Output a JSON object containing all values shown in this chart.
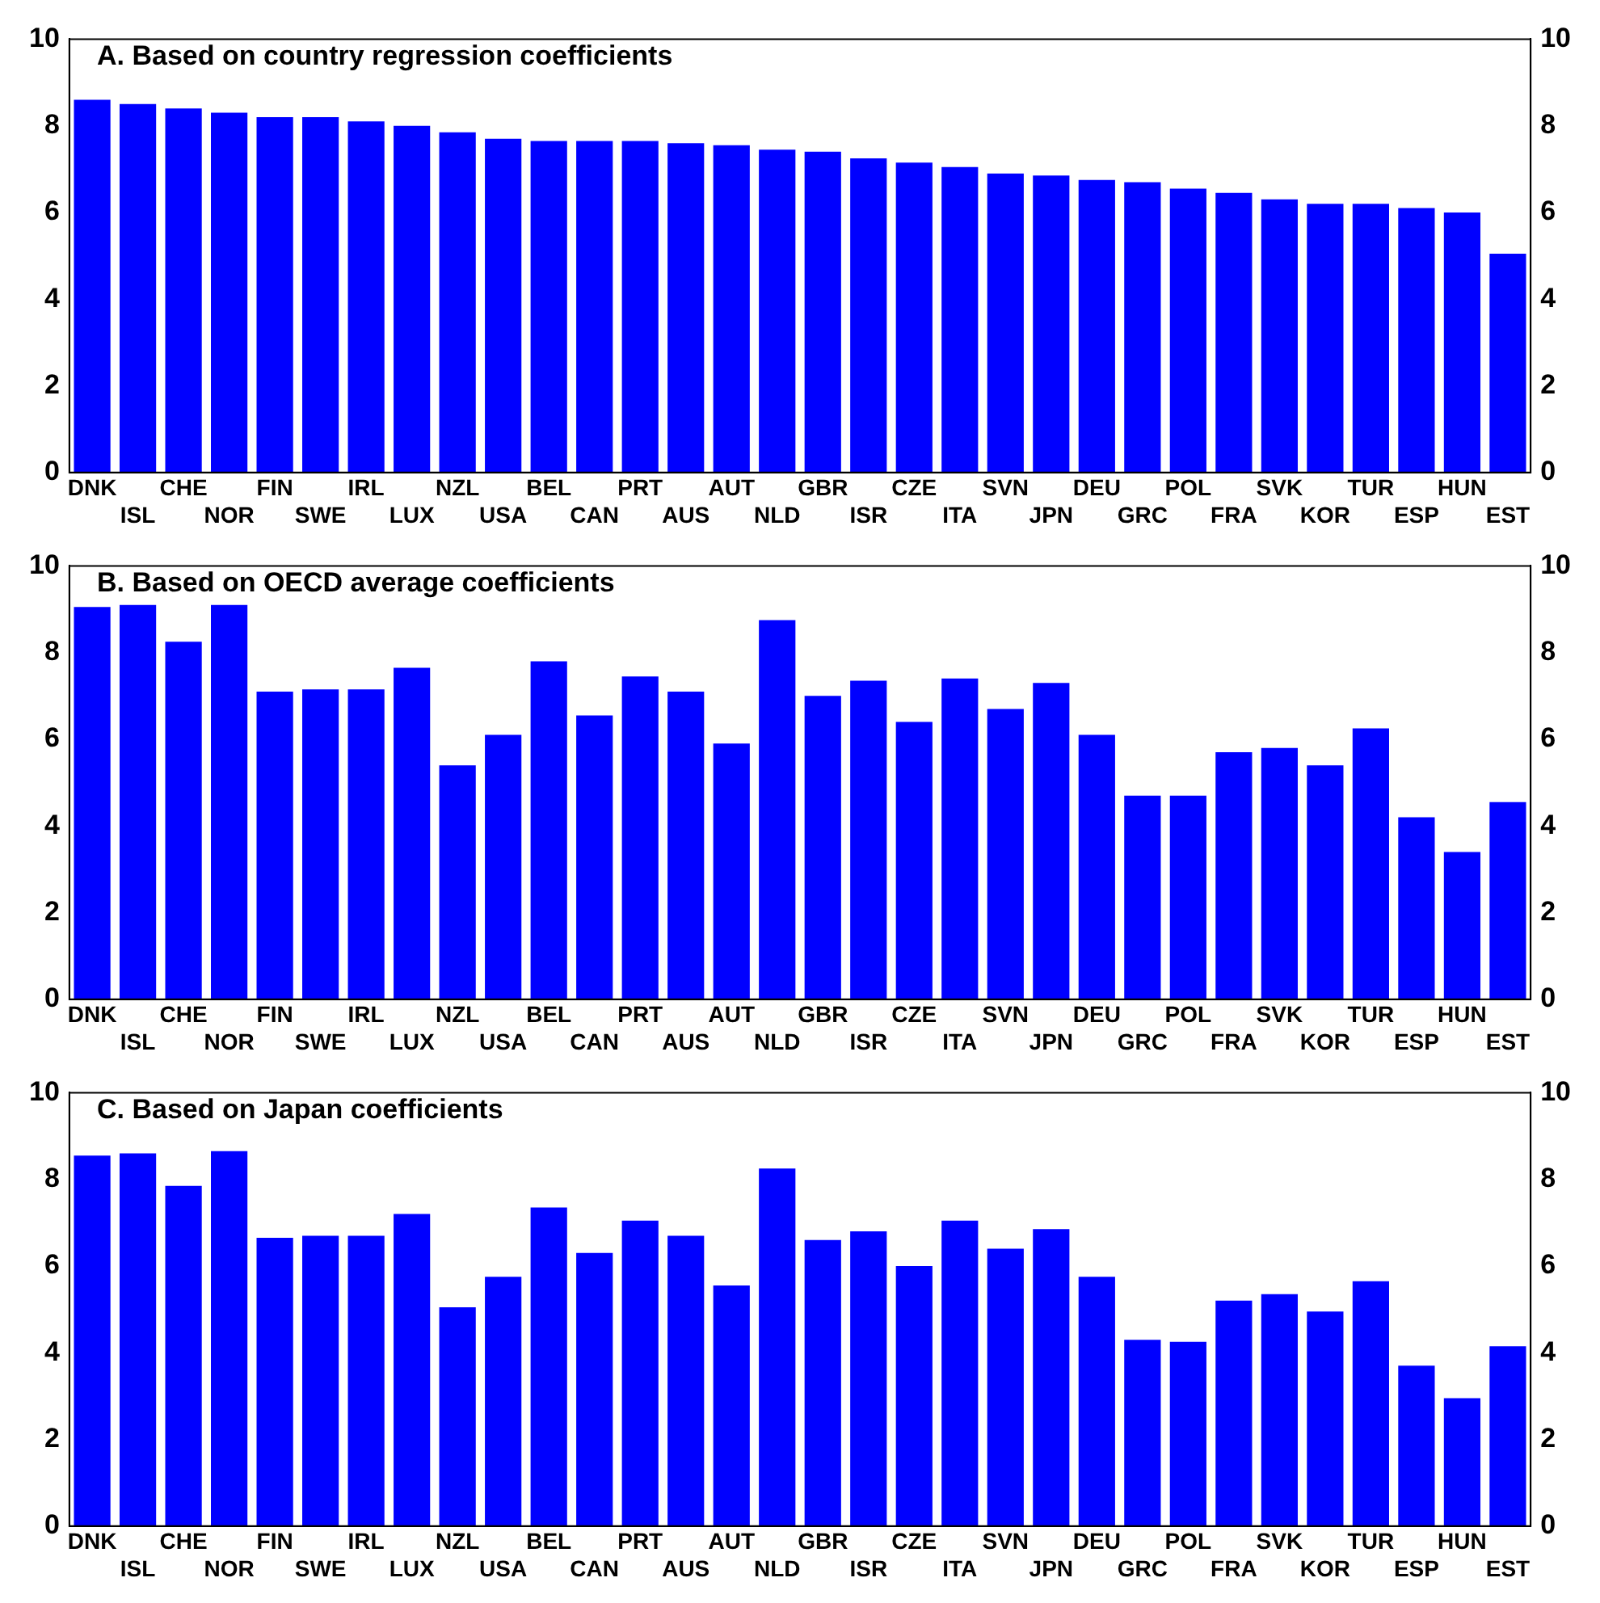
{
  "chart_data": [
    {
      "type": "bar",
      "title": "A. Based on country regression coefficients",
      "categories": [
        "DNK",
        "ISL",
        "CHE",
        "NOR",
        "FIN",
        "SWE",
        "IRL",
        "LUX",
        "NZL",
        "USA",
        "BEL",
        "CAN",
        "PRT",
        "AUS",
        "AUT",
        "NLD",
        "GBR",
        "ISR",
        "CZE",
        "ITA",
        "SVN",
        "JPN",
        "DEU",
        "GRC",
        "POL",
        "FRA",
        "SVK",
        "KOR",
        "TUR",
        "ESP",
        "HUN",
        "EST"
      ],
      "values": [
        8.6,
        8.5,
        8.4,
        8.3,
        8.2,
        8.2,
        8.1,
        8.0,
        7.85,
        7.7,
        7.65,
        7.65,
        7.65,
        7.6,
        7.55,
        7.45,
        7.4,
        7.25,
        7.15,
        7.05,
        6.9,
        6.85,
        6.75,
        6.7,
        6.55,
        6.45,
        6.3,
        6.2,
        6.2,
        6.1,
        6.0,
        5.05
      ],
      "color": "#0000ff",
      "ylim": [
        0,
        10
      ],
      "yticks": [
        0,
        2,
        4,
        6,
        8,
        10
      ],
      "y2lim": [
        0,
        10
      ],
      "y2ticks": [
        0,
        2,
        4,
        6,
        8,
        10
      ],
      "grid": false,
      "legend": false
    },
    {
      "type": "bar",
      "title": "B. Based on OECD average coefficients",
      "categories": [
        "DNK",
        "ISL",
        "CHE",
        "NOR",
        "FIN",
        "SWE",
        "IRL",
        "LUX",
        "NZL",
        "USA",
        "BEL",
        "CAN",
        "PRT",
        "AUS",
        "AUT",
        "NLD",
        "GBR",
        "ISR",
        "CZE",
        "ITA",
        "SVN",
        "JPN",
        "DEU",
        "GRC",
        "POL",
        "FRA",
        "SVK",
        "KOR",
        "TUR",
        "ESP",
        "HUN",
        "EST"
      ],
      "values": [
        9.05,
        9.1,
        8.25,
        9.1,
        7.1,
        7.15,
        7.15,
        7.65,
        5.4,
        6.1,
        7.8,
        6.55,
        7.45,
        7.1,
        5.9,
        8.75,
        7.0,
        7.35,
        6.4,
        7.4,
        6.7,
        7.3,
        6.1,
        4.7,
        4.7,
        5.7,
        5.8,
        5.4,
        6.25,
        4.2,
        3.4,
        4.55
      ],
      "color": "#0000ff",
      "ylim": [
        0,
        10
      ],
      "yticks": [
        0,
        2,
        4,
        6,
        8,
        10
      ],
      "y2lim": [
        0,
        10
      ],
      "y2ticks": [
        0,
        2,
        4,
        6,
        8,
        10
      ],
      "grid": false,
      "legend": false
    },
    {
      "type": "bar",
      "title": "C. Based on Japan coefficients",
      "categories": [
        "DNK",
        "ISL",
        "CHE",
        "NOR",
        "FIN",
        "SWE",
        "IRL",
        "LUX",
        "NZL",
        "USA",
        "BEL",
        "CAN",
        "PRT",
        "AUS",
        "AUT",
        "NLD",
        "GBR",
        "ISR",
        "CZE",
        "ITA",
        "SVN",
        "JPN",
        "DEU",
        "GRC",
        "POL",
        "FRA",
        "SVK",
        "KOR",
        "TUR",
        "ESP",
        "HUN",
        "EST"
      ],
      "values": [
        8.55,
        8.6,
        7.85,
        8.65,
        6.65,
        6.7,
        6.7,
        7.2,
        5.05,
        5.75,
        7.35,
        6.3,
        7.05,
        6.7,
        5.55,
        8.25,
        6.6,
        6.8,
        6.0,
        7.05,
        6.4,
        6.85,
        5.75,
        4.3,
        4.25,
        5.2,
        5.35,
        4.95,
        5.65,
        3.7,
        2.95,
        4.15
      ],
      "color": "#0000ff",
      "ylim": [
        0,
        10
      ],
      "yticks": [
        0,
        2,
        4,
        6,
        8,
        10
      ],
      "y2lim": [
        0,
        10
      ],
      "y2ticks": [
        0,
        2,
        4,
        6,
        8,
        10
      ],
      "grid": false,
      "legend": false
    }
  ]
}
